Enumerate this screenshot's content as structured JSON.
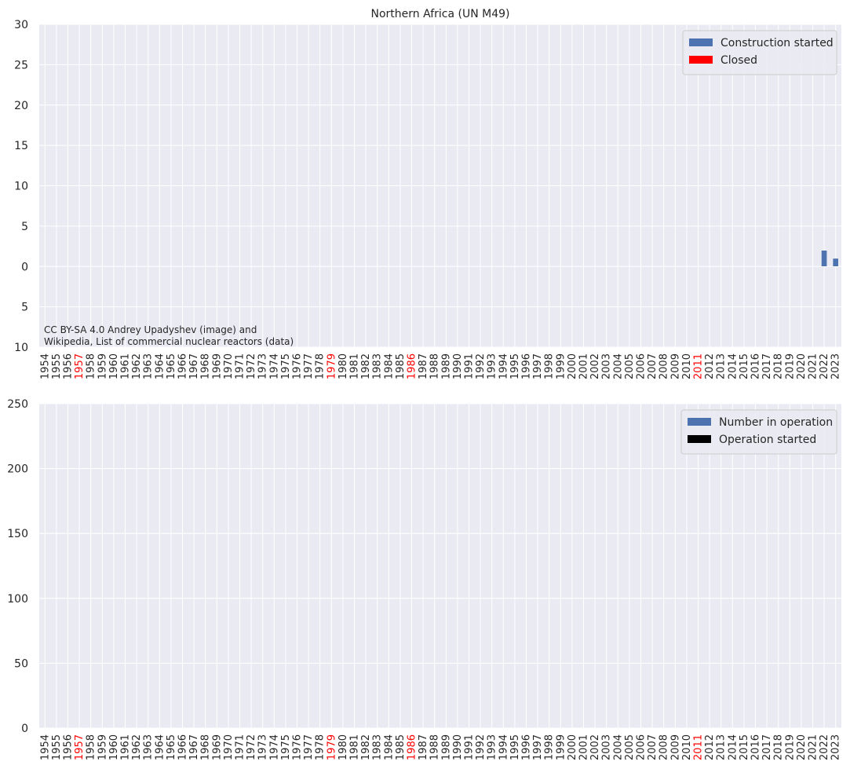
{
  "title": "Northern Africa (UN M49)",
  "colors": {
    "plot_bg": "#eaeaf2",
    "grid": "#ffffff",
    "construction": "#4c72b0",
    "closed": "#ff0000",
    "operation": "#4c72b0",
    "operation_started": "#000000",
    "highlight_year": "#ff0000",
    "text": "#262626"
  },
  "attribution": [
    "CC BY-SA 4.0 Andrey Upadyshev (image) and",
    "Wikipedia, List of commercial nuclear reactors (data)"
  ],
  "highlight_years": [
    "1957",
    "1979",
    "1986",
    "2011"
  ],
  "chart_data": [
    {
      "type": "bar",
      "title": "Northern Africa (UN M49)",
      "categories": [
        "1954",
        "1955",
        "1956",
        "1957",
        "1958",
        "1959",
        "1960",
        "1961",
        "1962",
        "1963",
        "1964",
        "1965",
        "1966",
        "1967",
        "1968",
        "1969",
        "1970",
        "1971",
        "1972",
        "1973",
        "1974",
        "1975",
        "1976",
        "1977",
        "1978",
        "1979",
        "1980",
        "1981",
        "1982",
        "1983",
        "1984",
        "1985",
        "1986",
        "1987",
        "1988",
        "1989",
        "1990",
        "1991",
        "1992",
        "1993",
        "1994",
        "1995",
        "1996",
        "1997",
        "1998",
        "1999",
        "2000",
        "2001",
        "2002",
        "2003",
        "2004",
        "2005",
        "2006",
        "2007",
        "2008",
        "2009",
        "2010",
        "2011",
        "2012",
        "2013",
        "2014",
        "2015",
        "2016",
        "2017",
        "2018",
        "2019",
        "2020",
        "2021",
        "2022",
        "2023"
      ],
      "ylim": [
        -10,
        30
      ],
      "yticks": [
        30,
        25,
        20,
        15,
        10,
        5,
        0,
        -5,
        -10
      ],
      "ytick_labels": [
        "30",
        "25",
        "20",
        "15",
        "10",
        "5",
        "0",
        "5",
        "10"
      ],
      "legend_position": "top-right",
      "grid": true,
      "series": [
        {
          "name": "Construction started",
          "direction": "up",
          "values": [
            0,
            0,
            0,
            0,
            0,
            0,
            0,
            0,
            0,
            0,
            0,
            0,
            0,
            0,
            0,
            0,
            0,
            0,
            0,
            0,
            0,
            0,
            0,
            0,
            0,
            0,
            0,
            0,
            0,
            0,
            0,
            0,
            0,
            0,
            0,
            0,
            0,
            0,
            0,
            0,
            0,
            0,
            0,
            0,
            0,
            0,
            0,
            0,
            0,
            0,
            0,
            0,
            0,
            0,
            0,
            0,
            0,
            0,
            0,
            0,
            0,
            0,
            0,
            0,
            0,
            0,
            0,
            0,
            2,
            1
          ]
        },
        {
          "name": "Closed",
          "direction": "down",
          "values": [
            0,
            0,
            0,
            0,
            0,
            0,
            0,
            0,
            0,
            0,
            0,
            0,
            0,
            0,
            0,
            0,
            0,
            0,
            0,
            0,
            0,
            0,
            0,
            0,
            0,
            0,
            0,
            0,
            0,
            0,
            0,
            0,
            0,
            0,
            0,
            0,
            0,
            0,
            0,
            0,
            0,
            0,
            0,
            0,
            0,
            0,
            0,
            0,
            0,
            0,
            0,
            0,
            0,
            0,
            0,
            0,
            0,
            0,
            0,
            0,
            0,
            0,
            0,
            0,
            0,
            0,
            0,
            0,
            0,
            0
          ]
        }
      ]
    },
    {
      "type": "bar",
      "categories": [
        "1954",
        "1955",
        "1956",
        "1957",
        "1958",
        "1959",
        "1960",
        "1961",
        "1962",
        "1963",
        "1964",
        "1965",
        "1966",
        "1967",
        "1968",
        "1969",
        "1970",
        "1971",
        "1972",
        "1973",
        "1974",
        "1975",
        "1976",
        "1977",
        "1978",
        "1979",
        "1980",
        "1981",
        "1982",
        "1983",
        "1984",
        "1985",
        "1986",
        "1987",
        "1988",
        "1989",
        "1990",
        "1991",
        "1992",
        "1993",
        "1994",
        "1995",
        "1996",
        "1997",
        "1998",
        "1999",
        "2000",
        "2001",
        "2002",
        "2003",
        "2004",
        "2005",
        "2006",
        "2007",
        "2008",
        "2009",
        "2010",
        "2011",
        "2012",
        "2013",
        "2014",
        "2015",
        "2016",
        "2017",
        "2018",
        "2019",
        "2020",
        "2021",
        "2022",
        "2023"
      ],
      "ylim": [
        0,
        250
      ],
      "yticks": [
        250,
        200,
        150,
        100,
        50,
        0
      ],
      "ytick_labels": [
        "250",
        "200",
        "150",
        "100",
        "50",
        "0"
      ],
      "legend_position": "top-right",
      "grid": true,
      "series": [
        {
          "name": "Number in operation",
          "values": [
            0,
            0,
            0,
            0,
            0,
            0,
            0,
            0,
            0,
            0,
            0,
            0,
            0,
            0,
            0,
            0,
            0,
            0,
            0,
            0,
            0,
            0,
            0,
            0,
            0,
            0,
            0,
            0,
            0,
            0,
            0,
            0,
            0,
            0,
            0,
            0,
            0,
            0,
            0,
            0,
            0,
            0,
            0,
            0,
            0,
            0,
            0,
            0,
            0,
            0,
            0,
            0,
            0,
            0,
            0,
            0,
            0,
            0,
            0,
            0,
            0,
            0,
            0,
            0,
            0,
            0,
            0,
            0,
            0,
            0
          ]
        },
        {
          "name": "Operation started",
          "values": [
            0,
            0,
            0,
            0,
            0,
            0,
            0,
            0,
            0,
            0,
            0,
            0,
            0,
            0,
            0,
            0,
            0,
            0,
            0,
            0,
            0,
            0,
            0,
            0,
            0,
            0,
            0,
            0,
            0,
            0,
            0,
            0,
            0,
            0,
            0,
            0,
            0,
            0,
            0,
            0,
            0,
            0,
            0,
            0,
            0,
            0,
            0,
            0,
            0,
            0,
            0,
            0,
            0,
            0,
            0,
            0,
            0,
            0,
            0,
            0,
            0,
            0,
            0,
            0,
            0,
            0,
            0,
            0,
            0,
            0
          ]
        }
      ]
    }
  ]
}
